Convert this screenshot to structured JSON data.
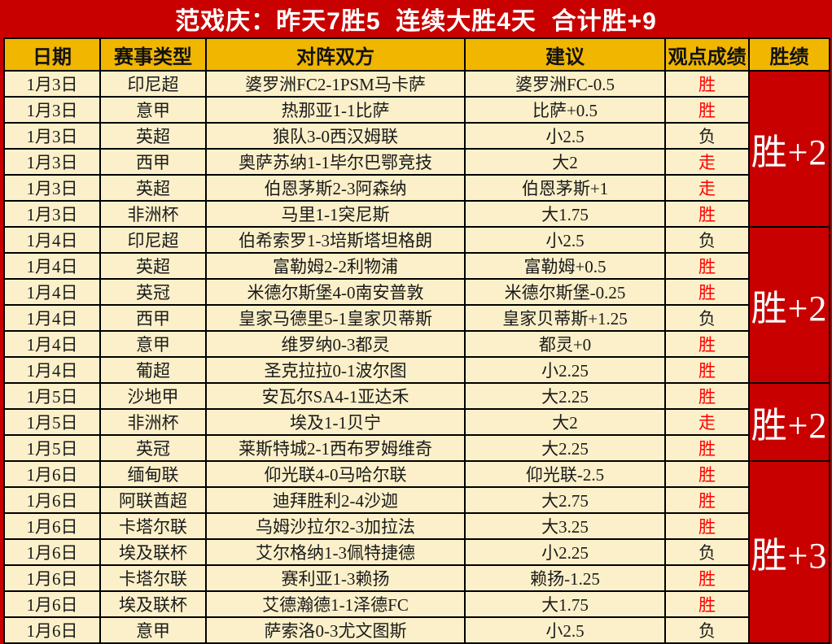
{
  "title": "范戏庆：昨天7胜5  连续大胜4天  合计胜+9",
  "colors": {
    "page_red": "#c80000",
    "header_gold": "#f0b600",
    "cell_cream": "#fbf0c9",
    "result_red": "#fe0000",
    "grid_black": "#000000",
    "title_white": "#ffffff"
  },
  "table": {
    "headers": [
      "日期",
      "赛事类型",
      "对阵双方",
      "建议",
      "观点成绩",
      "胜绩"
    ],
    "rows": [
      {
        "date": "1月3日",
        "league": "印尼超",
        "match": "婆罗洲FC2-1PSM马卡萨",
        "tip": "婆罗洲FC-0.5",
        "result": "胜",
        "result_color": "red"
      },
      {
        "date": "1月3日",
        "league": "意甲",
        "match": "热那亚1-1比萨",
        "tip": "比萨+0.5",
        "result": "胜",
        "result_color": "red"
      },
      {
        "date": "1月3日",
        "league": "英超",
        "match": "狼队3-0西汉姆联",
        "tip": "小2.5",
        "result": "负",
        "result_color": "black"
      },
      {
        "date": "1月3日",
        "league": "西甲",
        "match": "奥萨苏纳1-1毕尔巴鄂竞技",
        "tip": "大2",
        "result": "走",
        "result_color": "red"
      },
      {
        "date": "1月3日",
        "league": "英超",
        "match": "伯恩茅斯2-3阿森纳",
        "tip": "伯恩茅斯+1",
        "result": "走",
        "result_color": "red"
      },
      {
        "date": "1月3日",
        "league": "非洲杯",
        "match": "马里1-1突尼斯",
        "tip": "大1.75",
        "result": "胜",
        "result_color": "red"
      },
      {
        "date": "1月4日",
        "league": "印尼超",
        "match": "伯希索罗1-3培斯塔坦格朗",
        "tip": "小2.5",
        "result": "负",
        "result_color": "black"
      },
      {
        "date": "1月4日",
        "league": "英超",
        "match": "富勒姆2-2利物浦",
        "tip": "富勒姆+0.5",
        "result": "胜",
        "result_color": "red"
      },
      {
        "date": "1月4日",
        "league": "英冠",
        "match": "米德尔斯堡4-0南安普敦",
        "tip": "米德尔斯堡-0.25",
        "result": "胜",
        "result_color": "red"
      },
      {
        "date": "1月4日",
        "league": "西甲",
        "match": "皇家马德里5-1皇家贝蒂斯",
        "tip": "皇家贝蒂斯+1.25",
        "result": "负",
        "result_color": "black"
      },
      {
        "date": "1月4日",
        "league": "意甲",
        "match": "维罗纳0-3都灵",
        "tip": "都灵+0",
        "result": "胜",
        "result_color": "red"
      },
      {
        "date": "1月4日",
        "league": "葡超",
        "match": "圣克拉拉0-1波尔图",
        "tip": "小2.25",
        "result": "胜",
        "result_color": "red"
      },
      {
        "date": "1月5日",
        "league": "沙地甲",
        "match": "安瓦尔SA4-1亚达禾",
        "tip": "大2.25",
        "result": "胜",
        "result_color": "red"
      },
      {
        "date": "1月5日",
        "league": "非洲杯",
        "match": "埃及1-1贝宁",
        "tip": "大2",
        "result": "走",
        "result_color": "red"
      },
      {
        "date": "1月5日",
        "league": "英冠",
        "match": "莱斯特城2-1西布罗姆维奇",
        "tip": "大2.25",
        "result": "胜",
        "result_color": "red"
      },
      {
        "date": "1月6日",
        "league": "缅甸联",
        "match": "仰光联4-0马哈尔联",
        "tip": "仰光联-2.5",
        "result": "胜",
        "result_color": "red"
      },
      {
        "date": "1月6日",
        "league": "阿联酋超",
        "match": "迪拜胜利2-4沙迦",
        "tip": "大2.75",
        "result": "胜",
        "result_color": "red"
      },
      {
        "date": "1月6日",
        "league": "卡塔尔联",
        "match": "乌姆沙拉尔2-3加拉法",
        "tip": "大3.25",
        "result": "胜",
        "result_color": "red"
      },
      {
        "date": "1月6日",
        "league": "埃及联杯",
        "match": "艾尔格纳1-3佩特捷德",
        "tip": "小2.25",
        "result": "负",
        "result_color": "black"
      },
      {
        "date": "1月6日",
        "league": "卡塔尔联",
        "match": "赛利亚1-3赖扬",
        "tip": "赖扬-1.25",
        "result": "胜",
        "result_color": "red"
      },
      {
        "date": "1月6日",
        "league": "埃及联杯",
        "match": "艾德瀚德1-1泽德FC",
        "tip": "大1.75",
        "result": "胜",
        "result_color": "red"
      },
      {
        "date": "1月6日",
        "league": "意甲",
        "match": "萨索洛0-3尤文图斯",
        "tip": "小2.5",
        "result": "负",
        "result_color": "black"
      }
    ],
    "groups": [
      {
        "record": "胜+2",
        "row_count": 6
      },
      {
        "record": "胜+2",
        "row_count": 6
      },
      {
        "record": "胜+2",
        "row_count": 3
      },
      {
        "record": "胜+3",
        "row_count": 7
      }
    ]
  }
}
